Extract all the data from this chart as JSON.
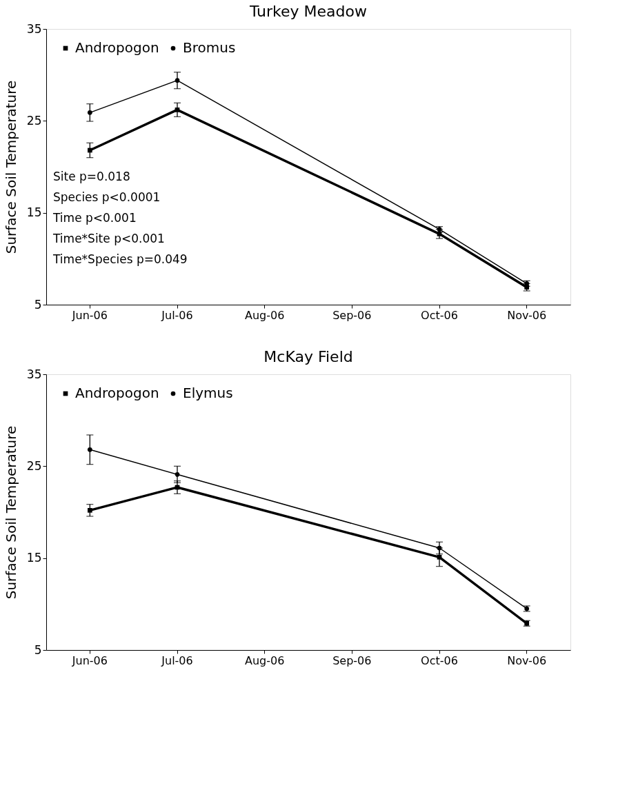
{
  "chart_data": [
    {
      "type": "line",
      "title": "Turkey Meadow",
      "ylabel": "Surface Soil Temperature",
      "categories": [
        "Jun-06",
        "Jul-06",
        "Aug-06",
        "Sep-06",
        "Oct-06",
        "Nov-06"
      ],
      "ylim": [
        5,
        35
      ],
      "yticks": [
        5,
        15,
        25,
        35
      ],
      "grid": false,
      "legend": "top left",
      "series": [
        {
          "name": "Andropogon",
          "color": "#000000",
          "marker": "square",
          "x": [
            "Jun-06",
            "Jul-06",
            "Oct-06",
            "Nov-06"
          ],
          "values": [
            21.8,
            26.2,
            12.7,
            6.9
          ],
          "errors": [
            0.8,
            0.75,
            0.5,
            0.4
          ]
        },
        {
          "name": "Bromus",
          "color": "#000000",
          "marker": "circle",
          "x": [
            "Jun-06",
            "Jul-06",
            "Oct-06",
            "Nov-06"
          ],
          "values": [
            25.9,
            29.4,
            13.2,
            7.3
          ],
          "errors": [
            0.95,
            0.9,
            0.3,
            0.3
          ]
        }
      ],
      "annotations": [
        "Site p=0.018",
        "Species p<0.0001",
        "Time p<0.001",
        "Time*Site p<0.001",
        "Time*Species p=0.049"
      ]
    },
    {
      "type": "line",
      "title": "McKay Field",
      "ylabel": "Surface Soil Temperature",
      "categories": [
        "Jun-06",
        "Jul-06",
        "Aug-06",
        "Sep-06",
        "Oct-06",
        "Nov-06"
      ],
      "ylim": [
        5,
        35
      ],
      "yticks": [
        5,
        15,
        25,
        35
      ],
      "grid": false,
      "legend": "top left",
      "series": [
        {
          "name": "Andropogon",
          "color": "#000000",
          "marker": "square",
          "x": [
            "Jun-06",
            "Jul-06",
            "Oct-06",
            "Nov-06"
          ],
          "values": [
            20.2,
            22.7,
            15.1,
            7.9
          ],
          "errors": [
            0.65,
            0.7,
            1.0,
            0.3
          ]
        },
        {
          "name": "Elymus",
          "color": "#000000",
          "marker": "circle",
          "x": [
            "Jun-06",
            "Jul-06",
            "Oct-06",
            "Nov-06"
          ],
          "values": [
            26.8,
            24.1,
            16.1,
            9.5
          ],
          "errors": [
            1.6,
            0.9,
            0.65,
            0.3
          ]
        }
      ]
    }
  ]
}
